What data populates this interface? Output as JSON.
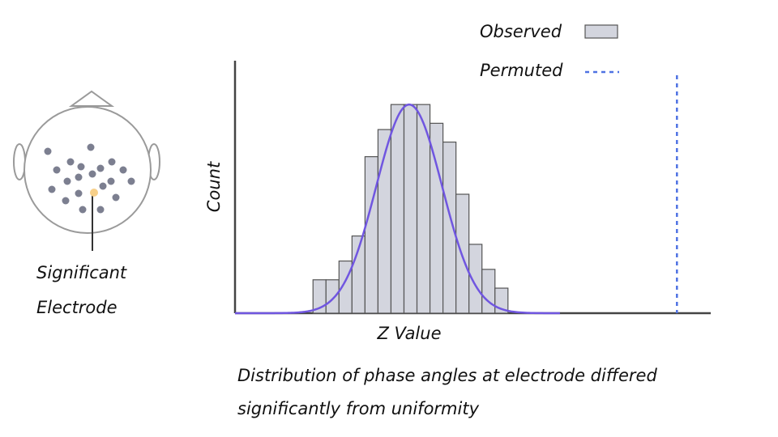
{
  "chart_data": {
    "type": "histogram",
    "x_label": "Z Value",
    "y_label": "Count",
    "bins": [
      -3.5,
      -3.0,
      -2.5,
      -2.0,
      -1.5,
      -1.0,
      -0.5,
      0.0,
      0.5,
      1.0,
      1.5,
      2.0,
      2.5,
      3.0,
      3.5,
      4.0
    ],
    "counts": [
      16,
      16,
      25,
      37,
      75,
      88,
      100,
      100,
      100,
      91,
      82,
      57,
      33,
      21,
      12
    ],
    "name": "Observed",
    "color": "#d3d5de",
    "curve": {
      "mean": 0.2,
      "sd": 1.27,
      "peak": 100,
      "range": [
        -6.5,
        6.0
      ],
      "color": "#7056e0"
    },
    "reference": {
      "name": "Permuted",
      "x": 10.5,
      "color": "#4f72e3"
    },
    "xlim": [
      -6.5,
      11.8
    ],
    "ylim": [
      0,
      121
    ]
  },
  "electrode_label": [
    "Significant",
    "Electrode"
  ],
  "caption": [
    "Distribution of phase angles at electrode differed",
    "significantly from uniformity"
  ]
}
